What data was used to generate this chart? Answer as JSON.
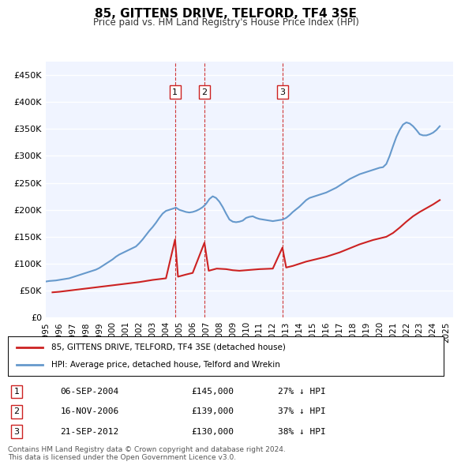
{
  "title": "85, GITTENS DRIVE, TELFORD, TF4 3SE",
  "subtitle": "Price paid vs. HM Land Registry's House Price Index (HPI)",
  "ylabel": "",
  "background_color": "#ffffff",
  "plot_bg_color": "#f0f4ff",
  "grid_color": "#ffffff",
  "hpi_color": "#6699cc",
  "price_color": "#cc2222",
  "vline_color": "#cc2222",
  "ylim": [
    0,
    475000
  ],
  "yticks": [
    0,
    50000,
    100000,
    150000,
    200000,
    250000,
    300000,
    350000,
    400000,
    450000
  ],
  "ytick_labels": [
    "£0",
    "£50K",
    "£100K",
    "£150K",
    "£200K",
    "£250K",
    "£300K",
    "£350K",
    "£400K",
    "£450K"
  ],
  "xlim_start": 1995.5,
  "xlim_end": 2025.5,
  "xticks": [
    1995,
    1996,
    1997,
    1998,
    1999,
    2000,
    2001,
    2002,
    2003,
    2004,
    2005,
    2006,
    2007,
    2008,
    2009,
    2010,
    2011,
    2012,
    2013,
    2014,
    2015,
    2016,
    2017,
    2018,
    2019,
    2020,
    2021,
    2022,
    2023,
    2024,
    2025
  ],
  "sale_events": [
    {
      "label": "1",
      "year": 2004.68,
      "price": 145000,
      "date": "06-SEP-2004",
      "pct": "27% ↓ HPI"
    },
    {
      "label": "2",
      "year": 2006.88,
      "price": 139000,
      "date": "16-NOV-2006",
      "pct": "37% ↓ HPI"
    },
    {
      "label": "3",
      "year": 2012.72,
      "price": 130000,
      "date": "21-SEP-2012",
      "pct": "38% ↓ HPI"
    }
  ],
  "legend_line1": "85, GITTENS DRIVE, TELFORD, TF4 3SE (detached house)",
  "legend_line2": "HPI: Average price, detached house, Telford and Wrekin",
  "footnote": "Contains HM Land Registry data © Crown copyright and database right 2024.\nThis data is licensed under the Open Government Licence v3.0.",
  "hpi_data": {
    "years": [
      1995.0,
      1995.25,
      1995.5,
      1995.75,
      1996.0,
      1996.25,
      1996.5,
      1996.75,
      1997.0,
      1997.25,
      1997.5,
      1997.75,
      1998.0,
      1998.25,
      1998.5,
      1998.75,
      1999.0,
      1999.25,
      1999.5,
      1999.75,
      2000.0,
      2000.25,
      2000.5,
      2000.75,
      2001.0,
      2001.25,
      2001.5,
      2001.75,
      2002.0,
      2002.25,
      2002.5,
      2002.75,
      2003.0,
      2003.25,
      2003.5,
      2003.75,
      2004.0,
      2004.25,
      2004.5,
      2004.75,
      2005.0,
      2005.25,
      2005.5,
      2005.75,
      2006.0,
      2006.25,
      2006.5,
      2006.75,
      2007.0,
      2007.25,
      2007.5,
      2007.75,
      2008.0,
      2008.25,
      2008.5,
      2008.75,
      2009.0,
      2009.25,
      2009.5,
      2009.75,
      2010.0,
      2010.25,
      2010.5,
      2010.75,
      2011.0,
      2011.25,
      2011.5,
      2011.75,
      2012.0,
      2012.25,
      2012.5,
      2012.75,
      2013.0,
      2013.25,
      2013.5,
      2013.75,
      2014.0,
      2014.25,
      2014.5,
      2014.75,
      2015.0,
      2015.25,
      2015.5,
      2015.75,
      2016.0,
      2016.25,
      2016.5,
      2016.75,
      2017.0,
      2017.25,
      2017.5,
      2017.75,
      2018.0,
      2018.25,
      2018.5,
      2018.75,
      2019.0,
      2019.25,
      2019.5,
      2019.75,
      2020.0,
      2020.25,
      2020.5,
      2020.75,
      2021.0,
      2021.25,
      2021.5,
      2021.75,
      2022.0,
      2022.25,
      2022.5,
      2022.75,
      2023.0,
      2023.25,
      2023.5,
      2023.75,
      2024.0,
      2024.25,
      2024.5
    ],
    "values": [
      67000,
      68000,
      68500,
      69000,
      70000,
      71000,
      72000,
      73000,
      75000,
      77000,
      79000,
      81000,
      83000,
      85000,
      87000,
      89000,
      92000,
      96000,
      100000,
      104000,
      108000,
      113000,
      117000,
      120000,
      123000,
      126000,
      129000,
      132000,
      138000,
      145000,
      153000,
      161000,
      168000,
      176000,
      185000,
      193000,
      198000,
      200000,
      202000,
      204000,
      200000,
      198000,
      196000,
      195000,
      196000,
      198000,
      201000,
      205000,
      211000,
      220000,
      225000,
      222000,
      215000,
      205000,
      193000,
      182000,
      178000,
      177000,
      178000,
      180000,
      185000,
      187000,
      188000,
      185000,
      183000,
      182000,
      181000,
      180000,
      179000,
      180000,
      181000,
      182000,
      185000,
      190000,
      196000,
      201000,
      206000,
      212000,
      218000,
      222000,
      224000,
      226000,
      228000,
      230000,
      232000,
      235000,
      238000,
      241000,
      245000,
      249000,
      253000,
      257000,
      260000,
      263000,
      266000,
      268000,
      270000,
      272000,
      274000,
      276000,
      278000,
      279000,
      285000,
      300000,
      318000,
      335000,
      348000,
      358000,
      362000,
      360000,
      355000,
      348000,
      340000,
      338000,
      338000,
      340000,
      343000,
      348000,
      355000
    ]
  },
  "price_data": {
    "years": [
      1995.5,
      1996.0,
      1997.0,
      1998.0,
      1999.0,
      2000.0,
      2001.0,
      2002.0,
      2003.0,
      2004.0,
      2004.68,
      2004.9,
      2005.5,
      2006.0,
      2006.88,
      2007.2,
      2007.8,
      2008.5,
      2009.0,
      2009.5,
      2010.0,
      2011.0,
      2012.0,
      2012.72,
      2013.0,
      2013.5,
      2014.0,
      2014.5,
      2015.0,
      2015.5,
      2016.0,
      2016.5,
      2017.0,
      2017.5,
      2018.0,
      2018.5,
      2019.0,
      2019.5,
      2020.0,
      2020.5,
      2021.0,
      2021.5,
      2022.0,
      2022.5,
      2023.0,
      2023.5,
      2024.0,
      2024.5
    ],
    "values": [
      47000,
      48000,
      51000,
      54000,
      57000,
      60000,
      63000,
      66000,
      70000,
      73000,
      145000,
      76000,
      80000,
      83000,
      139000,
      87000,
      91000,
      90000,
      88000,
      87000,
      88000,
      90000,
      91000,
      130000,
      93000,
      96000,
      100000,
      104000,
      107000,
      110000,
      113000,
      117000,
      121000,
      126000,
      131000,
      136000,
      140000,
      144000,
      147000,
      150000,
      157000,
      167000,
      178000,
      188000,
      196000,
      203000,
      210000,
      218000
    ]
  }
}
